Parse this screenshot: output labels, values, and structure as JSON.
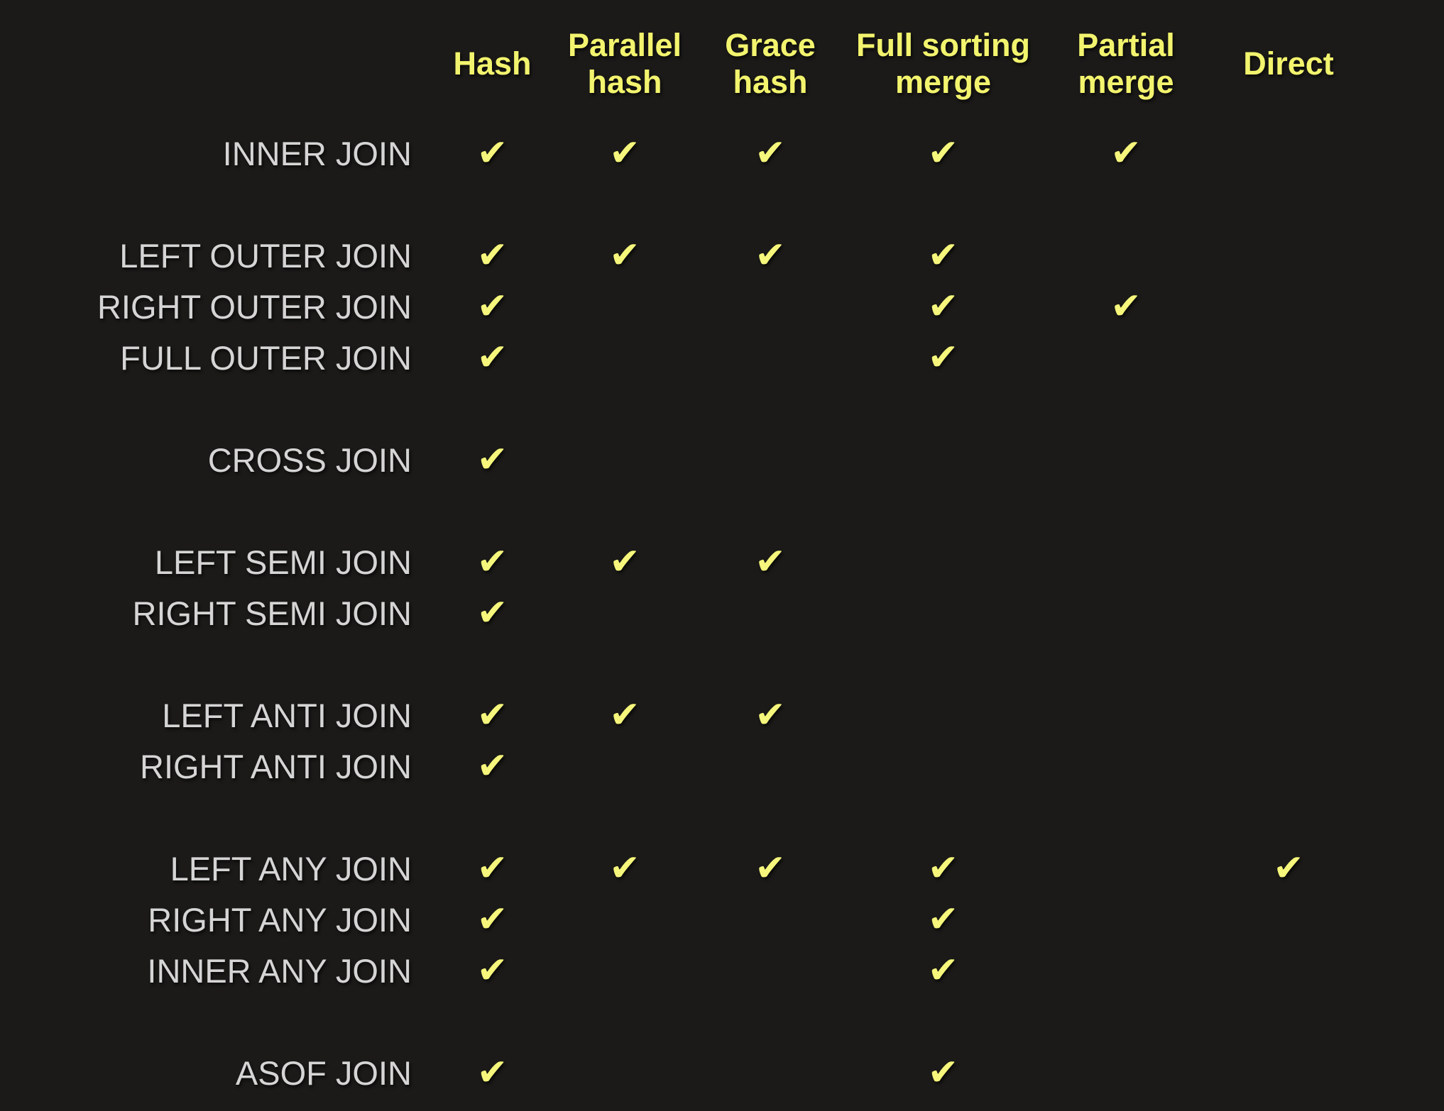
{
  "colors": {
    "background": "#1b1a18",
    "header_yellow": "#f3f46e",
    "check_yellow": "#f5f67b",
    "label_gray": "#d5d5d5"
  },
  "check_glyph": "✔",
  "check_icon_name": "heavy-checkmark-icon",
  "matrix": {
    "column_headers": [
      "Hash",
      "Parallel\nhash",
      "Grace\nhash",
      "Full sorting\nmerge",
      "Partial\nmerge",
      "Direct"
    ],
    "row_groups": [
      [
        {
          "label": "INNER JOIN",
          "supports": [
            true,
            true,
            true,
            true,
            true,
            false
          ]
        }
      ],
      [
        {
          "label": "LEFT OUTER JOIN",
          "supports": [
            true,
            true,
            true,
            true,
            false,
            false
          ]
        },
        {
          "label": "RIGHT OUTER JOIN",
          "supports": [
            true,
            false,
            false,
            true,
            true,
            false
          ]
        },
        {
          "label": "FULL OUTER JOIN",
          "supports": [
            true,
            false,
            false,
            true,
            false,
            false
          ]
        }
      ],
      [
        {
          "label": "CROSS JOIN",
          "supports": [
            true,
            false,
            false,
            false,
            false,
            false
          ]
        }
      ],
      [
        {
          "label": "LEFT SEMI JOIN",
          "supports": [
            true,
            true,
            true,
            false,
            false,
            false
          ]
        },
        {
          "label": "RIGHT SEMI JOIN",
          "supports": [
            true,
            false,
            false,
            false,
            false,
            false
          ]
        }
      ],
      [
        {
          "label": "LEFT ANTI JOIN",
          "supports": [
            true,
            true,
            true,
            false,
            false,
            false
          ]
        },
        {
          "label": "RIGHT ANTI JOIN",
          "supports": [
            true,
            false,
            false,
            false,
            false,
            false
          ]
        }
      ],
      [
        {
          "label": "LEFT ANY JOIN",
          "supports": [
            true,
            true,
            true,
            true,
            false,
            true
          ]
        },
        {
          "label": "RIGHT ANY JOIN",
          "supports": [
            true,
            false,
            false,
            true,
            false,
            false
          ]
        },
        {
          "label": "INNER ANY JOIN",
          "supports": [
            true,
            false,
            false,
            true,
            false,
            false
          ]
        }
      ],
      [
        {
          "label": "ASOF JOIN",
          "supports": [
            true,
            false,
            false,
            true,
            false,
            false
          ]
        }
      ]
    ]
  },
  "chart_data": {
    "type": "table",
    "title": "",
    "columns": [
      "Hash",
      "Parallel hash",
      "Grace hash",
      "Full sorting merge",
      "Partial merge",
      "Direct"
    ],
    "rows": [
      {
        "label": "INNER JOIN",
        "values": [
          1,
          1,
          1,
          1,
          1,
          0
        ]
      },
      {
        "label": "LEFT OUTER JOIN",
        "values": [
          1,
          1,
          1,
          1,
          0,
          0
        ]
      },
      {
        "label": "RIGHT OUTER JOIN",
        "values": [
          1,
          0,
          0,
          1,
          1,
          0
        ]
      },
      {
        "label": "FULL OUTER JOIN",
        "values": [
          1,
          0,
          0,
          1,
          0,
          0
        ]
      },
      {
        "label": "CROSS JOIN",
        "values": [
          1,
          0,
          0,
          0,
          0,
          0
        ]
      },
      {
        "label": "LEFT SEMI JOIN",
        "values": [
          1,
          1,
          1,
          0,
          0,
          0
        ]
      },
      {
        "label": "RIGHT SEMI JOIN",
        "values": [
          1,
          0,
          0,
          0,
          0,
          0
        ]
      },
      {
        "label": "LEFT ANTI JOIN",
        "values": [
          1,
          1,
          1,
          0,
          0,
          0
        ]
      },
      {
        "label": "RIGHT ANTI JOIN",
        "values": [
          1,
          0,
          0,
          0,
          0,
          0
        ]
      },
      {
        "label": "LEFT ANY JOIN",
        "values": [
          1,
          1,
          1,
          1,
          0,
          1
        ]
      },
      {
        "label": "RIGHT ANY JOIN",
        "values": [
          1,
          0,
          0,
          1,
          0,
          0
        ]
      },
      {
        "label": "INNER ANY JOIN",
        "values": [
          1,
          0,
          0,
          1,
          0,
          0
        ]
      },
      {
        "label": "ASOF JOIN",
        "values": [
          1,
          0,
          0,
          1,
          0,
          0
        ]
      }
    ],
    "legend": "1 = supported (yellow heavy checkmark), 0 = not supported (empty cell)",
    "layout": {
      "grid": "off",
      "row_label_align": "right",
      "cell_mark_align": "center"
    }
  }
}
